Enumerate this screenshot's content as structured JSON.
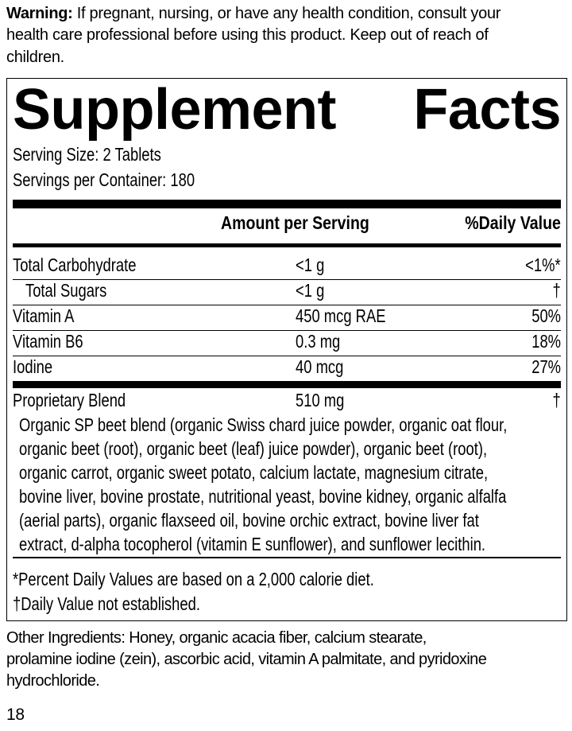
{
  "warning": {
    "label": "Warning:",
    "lines": [
      " If pregnant, nursing, or have any health condition, consult your",
      "health care professional before using this product. Keep out of reach of",
      "children."
    ]
  },
  "title": [
    "Supplement",
    "Facts"
  ],
  "serving_size": "Serving Size: 2 Tablets",
  "servings_per_container": "Servings per Container: 180",
  "header": {
    "amount": "Amount per Serving",
    "dv": "%Daily Value"
  },
  "rows": [
    {
      "name": "Total Carbohydrate",
      "amount": "<1 g",
      "dv": "<1%*"
    },
    {
      "name": "Total Sugars",
      "amount": "<1 g",
      "dv": "†"
    },
    {
      "name": "Vitamin A",
      "amount": "450 mcg RAE",
      "dv": "50%"
    },
    {
      "name": "Vitamin B6",
      "amount": "0.3 mg",
      "dv": "18%"
    },
    {
      "name": "Iodine",
      "amount": "40 mcg",
      "dv": "27%"
    }
  ],
  "blend": {
    "name": "Proprietary Blend",
    "amount": "510 mg",
    "dv": "†",
    "lines": [
      "Organic SP beet blend (organic Swiss chard juice powder, organic oat flour,",
      "organic beet (root), organic beet (leaf) juice powder), organic beet (root),",
      "organic carrot, organic sweet potato, calcium lactate, magnesium citrate,",
      "bovine liver, bovine prostate, nutritional yeast, bovine kidney, organic alfalfa",
      "(aerial parts), organic flaxseed oil, bovine orchic extract, bovine liver fat",
      "extract, d-alpha tocopherol (vitamin E sunflower), and sunflower lecithin."
    ]
  },
  "footnotes": [
    "*Percent Daily Values are based on a 2,000 calorie diet.",
    "†Daily Value not established."
  ],
  "other_ingredients": [
    "Other Ingredients: Honey, organic acacia fiber, calcium stearate,",
    "prolamine iodine (zein), ascorbic acid, vitamin A palmitate, and pyridoxine",
    "hydrochloride."
  ],
  "page_number": "18"
}
